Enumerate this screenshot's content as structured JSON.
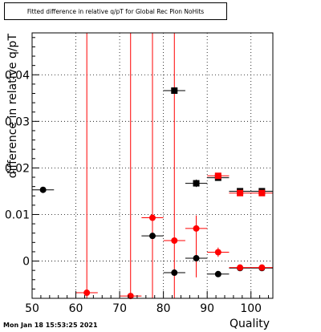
{
  "chart_data": {
    "type": "scatter",
    "title": "Fitted difference in relative q/pT for Global Rec Pion NoHits",
    "xlabel": "Quality",
    "ylabel": "difference in relative q/pT",
    "xlim": [
      50,
      105
    ],
    "ylim": [
      -0.008,
      0.049
    ],
    "x_ticks": [
      50,
      60,
      70,
      80,
      90,
      100
    ],
    "y_ticks": [
      0,
      0.01,
      0.02,
      0.03,
      0.04
    ],
    "y_tick_labels": [
      "0",
      "0.01",
      "0.02",
      "0.03",
      "0.04"
    ],
    "grid": true,
    "series": [
      {
        "color": "#000000",
        "marker": "square",
        "points": [
          {
            "x": 82.5,
            "y": 0.0366,
            "xerr": 2.5,
            "yerr": 0.0004
          },
          {
            "x": 87.5,
            "y": 0.0167,
            "xerr": 2.5,
            "yerr": 0.0008
          },
          {
            "x": 92.5,
            "y": 0.0179,
            "xerr": 2.5,
            "yerr": 0.0005
          },
          {
            "x": 97.5,
            "y": 0.015,
            "xerr": 2.5,
            "yerr": 0.0003
          },
          {
            "x": 102.5,
            "y": 0.015,
            "xerr": 2.5,
            "yerr": 0.0003
          }
        ]
      },
      {
        "color": "#ff0000",
        "marker": "square",
        "points": [
          {
            "x": 92.5,
            "y": 0.0183,
            "xerr": 2.5,
            "yerr": 0.0006
          },
          {
            "x": 97.5,
            "y": 0.0146,
            "xerr": 2.5,
            "yerr": 0.0003
          },
          {
            "x": 102.5,
            "y": 0.0146,
            "xerr": 2.5,
            "yerr": 0.0003
          }
        ]
      },
      {
        "color": "#000000",
        "marker": "circle",
        "points": [
          {
            "x": 52.5,
            "y": 0.0153,
            "xerr": 2.5,
            "yerr": 0.0
          },
          {
            "x": 77.5,
            "y": 0.0054,
            "xerr": 2.5,
            "yerr": 0.0003
          },
          {
            "x": 82.5,
            "y": -0.0025,
            "xerr": 2.5,
            "yerr": 0.0004
          },
          {
            "x": 87.5,
            "y": 0.0006,
            "xerr": 2.5,
            "yerr": 0.0004
          },
          {
            "x": 92.5,
            "y": -0.0028,
            "xerr": 2.5,
            "yerr": 0.0002
          },
          {
            "x": 97.5,
            "y": -0.0015,
            "xerr": 2.5,
            "yerr": 0.0002
          },
          {
            "x": 102.5,
            "y": -0.0015,
            "xerr": 2.5,
            "yerr": 0.0002
          }
        ]
      },
      {
        "color": "#ff0000",
        "marker": "circle",
        "points": [
          {
            "x": 62.5,
            "y": -0.0068,
            "xerr": 2.5,
            "yerr_low": 0.01,
            "yerr_high": 0.06
          },
          {
            "x": 72.5,
            "y": -0.0075,
            "xerr": 2.5,
            "yerr_low": 0.01,
            "yerr_high": 0.06
          },
          {
            "x": 77.5,
            "y": 0.0093,
            "xerr": 2.5,
            "yerr_low": 0.02,
            "yerr_high": 0.04
          },
          {
            "x": 82.5,
            "y": 0.0044,
            "xerr": 2.5,
            "yerr_low": 0.02,
            "yerr_high": 0.05
          },
          {
            "x": 87.5,
            "y": 0.007,
            "xerr": 2.5,
            "yerr_low": 0.0105,
            "yerr_high": 0.0028
          },
          {
            "x": 92.5,
            "y": 0.0019,
            "xerr": 2.5,
            "yerr": 0.001
          },
          {
            "x": 97.5,
            "y": -0.0014,
            "xerr": 2.5,
            "yerr": 0.0003
          },
          {
            "x": 102.5,
            "y": -0.0014,
            "xerr": 2.5,
            "yerr": 0.0003
          }
        ]
      }
    ]
  },
  "footer": {
    "timestamp": "Mon Jan 18 15:53:25 2021"
  }
}
